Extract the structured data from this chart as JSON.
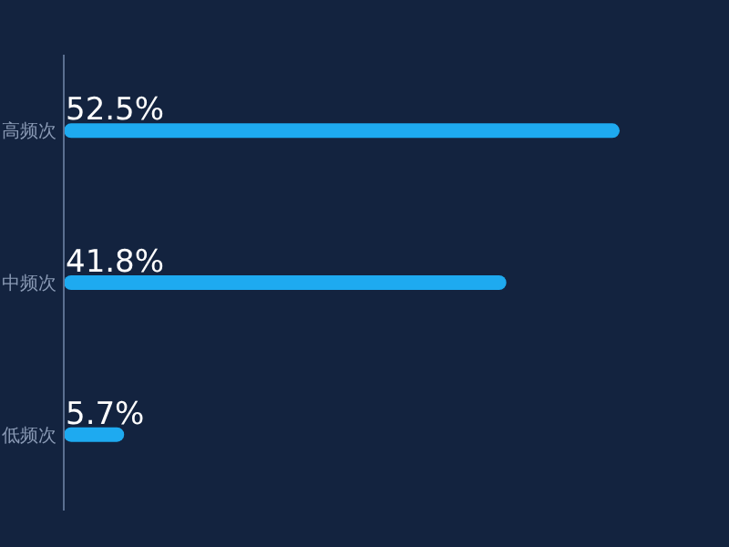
{
  "chart_data": {
    "type": "bar",
    "orientation": "horizontal",
    "categories": [
      "高频次",
      "中频次",
      "低频次"
    ],
    "values": [
      52.5,
      41.8,
      5.7
    ],
    "value_labels": [
      "52.5%",
      "41.8%",
      "5.7%"
    ],
    "color": "#1eaaf0"
  }
}
